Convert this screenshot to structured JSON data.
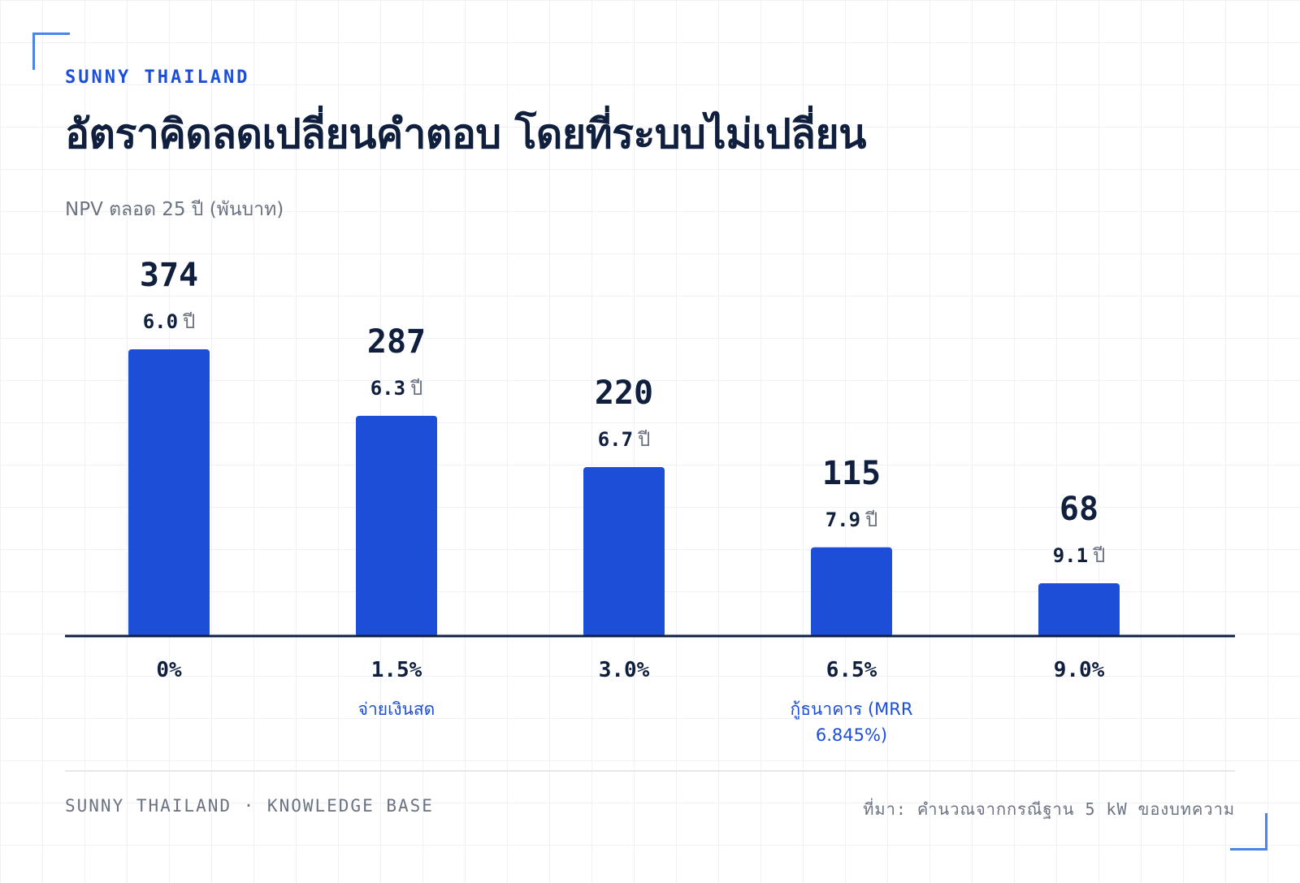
{
  "brand": "SUNNY THAILAND",
  "title": "อัตราคิดลดเปลี่ยนคำตอบ โดยที่ระบบไม่เปลี่ยน",
  "subtitle": "NPV ตลอด 25 ปี (พันบาท)",
  "colors": {
    "bar": "#1d4ed8",
    "axis": "#0f1f3d",
    "text": "#0f1f3d",
    "muted": "#6b7280",
    "accent": "#1d4ed8",
    "corner": "#4a86e8"
  },
  "chart_data": {
    "type": "bar",
    "categories": [
      "0%",
      "1.5%",
      "3.0%",
      "6.5%",
      "9.0%"
    ],
    "values": [
      374,
      287,
      220,
      115,
      68
    ],
    "payback": [
      "6.0",
      "6.3",
      "6.7",
      "7.9",
      "9.1"
    ],
    "payback_unit": "ปี",
    "category_notes": [
      "",
      "จ่ายเงินสด",
      "",
      "กู้ธนาคาร (MRR 6.845%)",
      ""
    ],
    "ylim": [
      0,
      374
    ],
    "grid": false,
    "legend": "none"
  },
  "footer": {
    "left": "SUNNY THAILAND · KNOWLEDGE BASE",
    "right": "ที่มา: คำนวณจากกรณีฐาน 5 kW ของบทความ"
  }
}
